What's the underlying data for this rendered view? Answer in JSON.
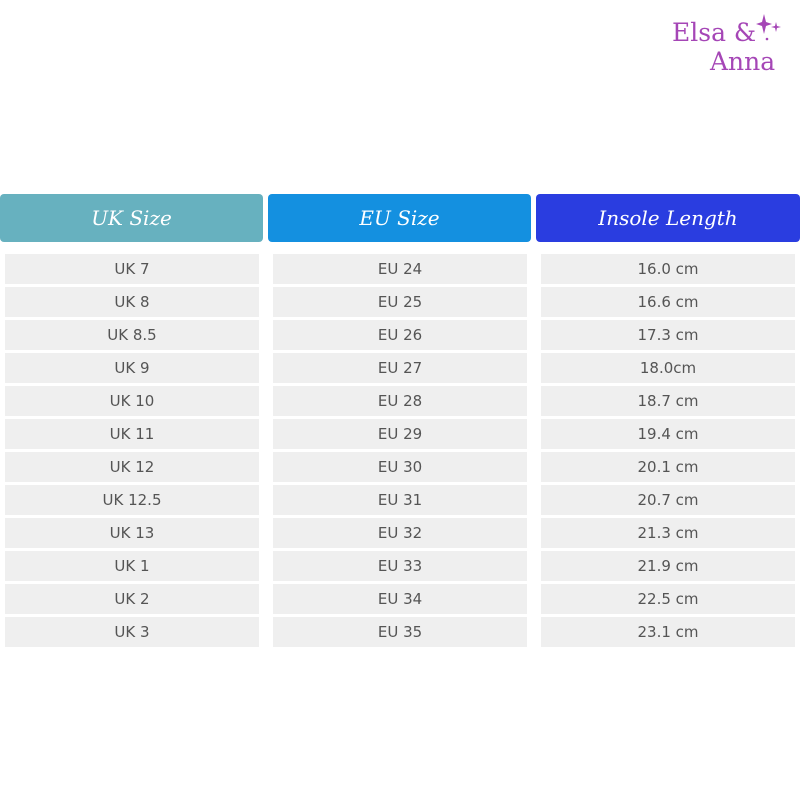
{
  "brand": {
    "line1": "Elsa &",
    "line2": "Anna",
    "color": "#a546b6"
  },
  "headers": [
    {
      "label": "UK Size",
      "color": "#67b1bf"
    },
    {
      "label": "EU Size",
      "color": "#1490e0"
    },
    {
      "label": "Insole Length",
      "color": "#2a3de0"
    }
  ],
  "uk": [
    "UK 7",
    "UK 8",
    "UK 8.5",
    "UK 9",
    "UK 10",
    "UK 11",
    "UK 12",
    "UK 12.5",
    "UK 13",
    "UK 1",
    "UK 2",
    "UK 3"
  ],
  "eu": [
    "EU 24",
    "EU 25",
    "EU 26",
    "EU 27",
    "EU 28",
    "EU 29",
    "EU 30",
    "EU 31",
    "EU 32",
    "EU 33",
    "EU 34",
    "EU 35"
  ],
  "insole": [
    "16.0 cm",
    "16.6 cm",
    "17.3 cm",
    "18.0cm",
    "18.7 cm",
    "19.4 cm",
    "20.1 cm",
    "20.7 cm",
    "21.3 cm",
    "21.9 cm",
    "22.5 cm",
    "23.1 cm"
  ]
}
